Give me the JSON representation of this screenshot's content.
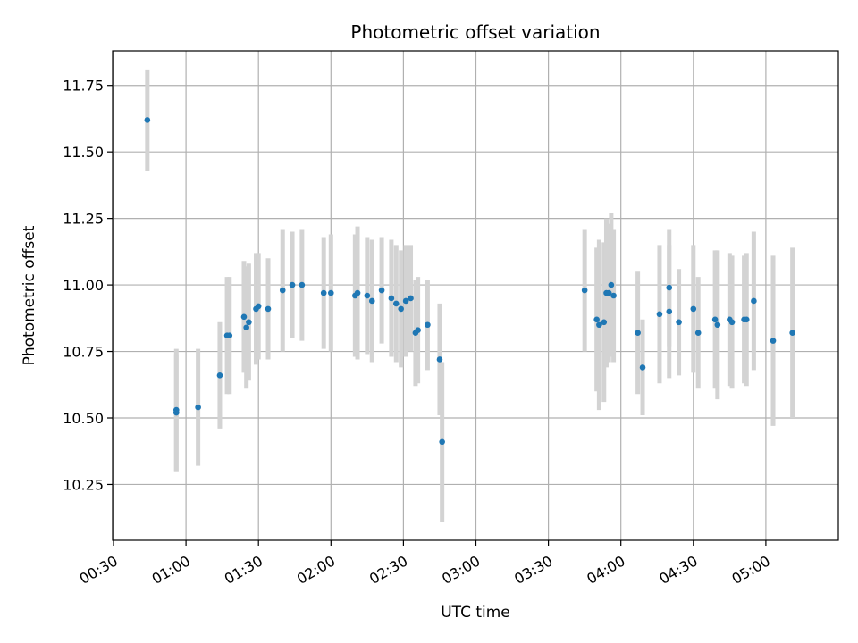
{
  "chart_data": {
    "type": "scatter",
    "title": "Photometric offset variation",
    "xlabel": "UTC time",
    "ylabel": "Photometric offset",
    "grid": true,
    "x_ticks": [
      "00:30",
      "01:00",
      "01:30",
      "02:00",
      "02:30",
      "03:00",
      "03:30",
      "04:00",
      "04:30",
      "05:00"
    ],
    "y_ticks": [
      "10.25",
      "10.50",
      "10.75",
      "11.00",
      "11.25",
      "11.50",
      "11.75"
    ],
    "xlim": [
      "00:30",
      "05:30"
    ],
    "ylim": [
      10.04,
      11.88
    ],
    "colors": {
      "point": "#1f77b4",
      "errorbar": "#d3d3d3",
      "grid": "#b0b0b0"
    },
    "series": [
      {
        "x": [
          "00:44",
          "00:56",
          "00:56",
          "01:05",
          "01:14",
          "01:17",
          "01:18",
          "01:24",
          "01:25",
          "01:26",
          "01:29",
          "01:30",
          "01:34",
          "01:40",
          "01:44",
          "01:48",
          "01:57",
          "02:00",
          "02:10",
          "02:11",
          "02:15",
          "02:17",
          "02:21",
          "02:25",
          "02:27",
          "02:29",
          "02:31",
          "02:33",
          "02:35",
          "02:36",
          "02:40",
          "02:45",
          "02:46",
          "03:45",
          "03:50",
          "03:51",
          "03:53",
          "03:54",
          "03:55",
          "03:56",
          "03:57",
          "04:07",
          "04:09",
          "04:16",
          "04:20",
          "04:20",
          "04:24",
          "04:30",
          "04:32",
          "04:39",
          "04:40",
          "04:45",
          "04:46",
          "04:51",
          "04:52",
          "04:55",
          "05:03",
          "05:11"
        ],
        "y": [
          11.62,
          10.53,
          10.52,
          10.54,
          10.66,
          10.81,
          10.81,
          10.88,
          10.84,
          10.86,
          10.91,
          10.92,
          10.91,
          10.98,
          11.0,
          11.0,
          10.97,
          10.97,
          10.96,
          10.97,
          10.96,
          10.94,
          10.98,
          10.95,
          10.93,
          10.91,
          10.94,
          10.95,
          10.82,
          10.83,
          10.85,
          10.72,
          10.41,
          10.98,
          10.87,
          10.85,
          10.86,
          10.97,
          10.97,
          11.0,
          10.96,
          10.82,
          10.69,
          10.89,
          10.99,
          10.9,
          10.86,
          10.91,
          10.82,
          10.87,
          10.85,
          10.87,
          10.86,
          10.87,
          10.87,
          10.94,
          10.79,
          10.82
        ],
        "err": [
          0.19,
          0.23,
          0.22,
          0.22,
          0.2,
          0.22,
          0.22,
          0.21,
          0.23,
          0.22,
          0.21,
          0.2,
          0.19,
          0.23,
          0.2,
          0.21,
          0.21,
          0.22,
          0.23,
          0.25,
          0.22,
          0.23,
          0.2,
          0.22,
          0.22,
          0.22,
          0.21,
          0.2,
          0.2,
          0.2,
          0.17,
          0.21,
          0.3,
          0.23,
          0.27,
          0.32,
          0.3,
          0.28,
          0.26,
          0.27,
          0.25,
          0.23,
          0.18,
          0.26,
          0.22,
          0.25,
          0.2,
          0.24,
          0.21,
          0.26,
          0.28,
          0.25,
          0.25,
          0.24,
          0.25,
          0.26,
          0.32,
          0.32
        ]
      }
    ]
  }
}
